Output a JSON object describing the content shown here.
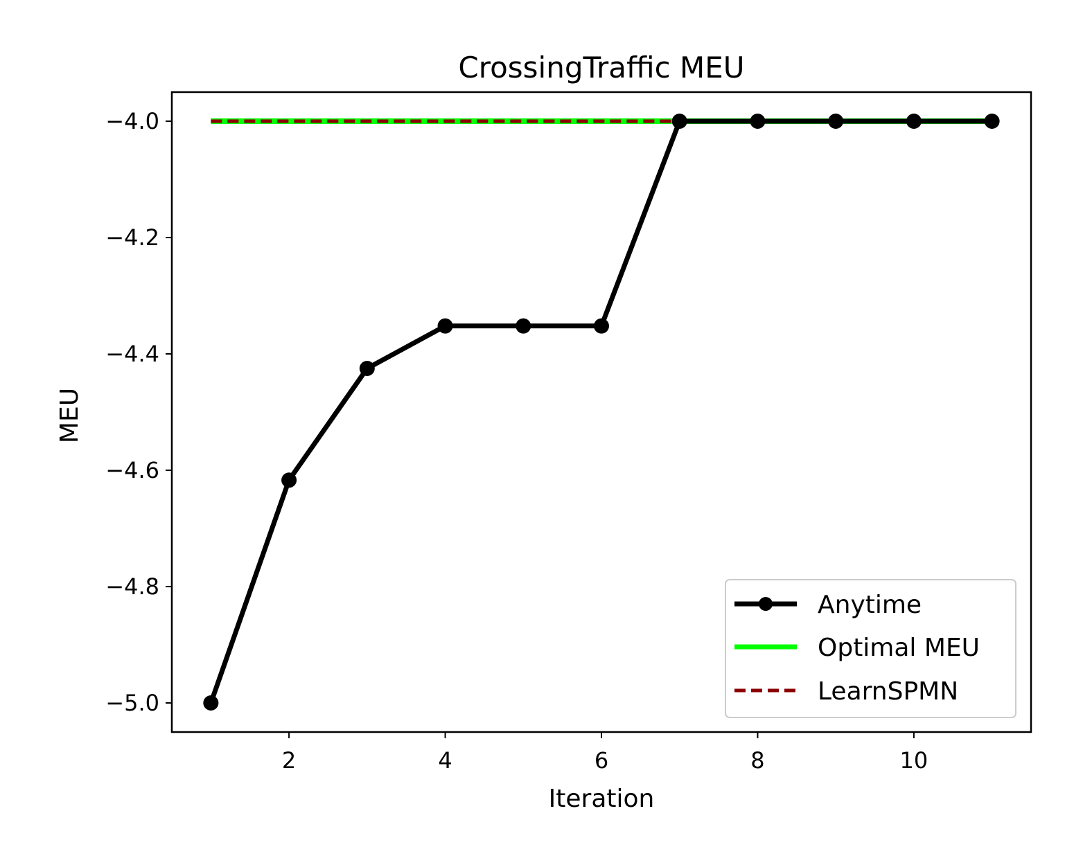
{
  "chart_data": {
    "type": "line",
    "title": "CrossingTraffic MEU",
    "xlabel": "Iteration",
    "ylabel": "MEU",
    "xlim": [
      0.5,
      11.5
    ],
    "ylim": [
      -5.05,
      -3.95
    ],
    "xticks": [
      2,
      4,
      6,
      8,
      10
    ],
    "xtick_labels": [
      "2",
      "4",
      "6",
      "8",
      "10"
    ],
    "yticks": [
      -4.0,
      -4.2,
      -4.4,
      -4.6,
      -4.8,
      -5.0
    ],
    "ytick_labels": [
      "−4.0",
      "−4.2",
      "−4.4",
      "−4.6",
      "−4.8",
      "−5.0"
    ],
    "grid": false,
    "legend_position": "lower-right",
    "x": [
      1,
      2,
      3,
      4,
      5,
      6,
      7,
      8,
      9,
      10,
      11
    ],
    "series": [
      {
        "name": "Anytime",
        "style": "solid-with-markers",
        "color": "#000000",
        "values": [
          -5.0,
          -4.617,
          -4.425,
          -4.352,
          -4.352,
          -4.352,
          -4.0,
          -4.0,
          -4.0,
          -4.0,
          -4.0
        ]
      },
      {
        "name": "Optimal MEU",
        "style": "solid",
        "color": "#00ff00",
        "values": [
          -4.0,
          -4.0,
          -4.0,
          -4.0,
          -4.0,
          -4.0,
          -4.0,
          -4.0,
          -4.0,
          -4.0,
          -4.0
        ]
      },
      {
        "name": "LearnSPMN",
        "style": "dashed",
        "color": "#8b0000",
        "values": [
          -4.0,
          -4.0,
          -4.0,
          -4.0,
          -4.0,
          -4.0,
          -4.0,
          -4.0,
          -4.0,
          -4.0,
          -4.0
        ]
      }
    ]
  }
}
